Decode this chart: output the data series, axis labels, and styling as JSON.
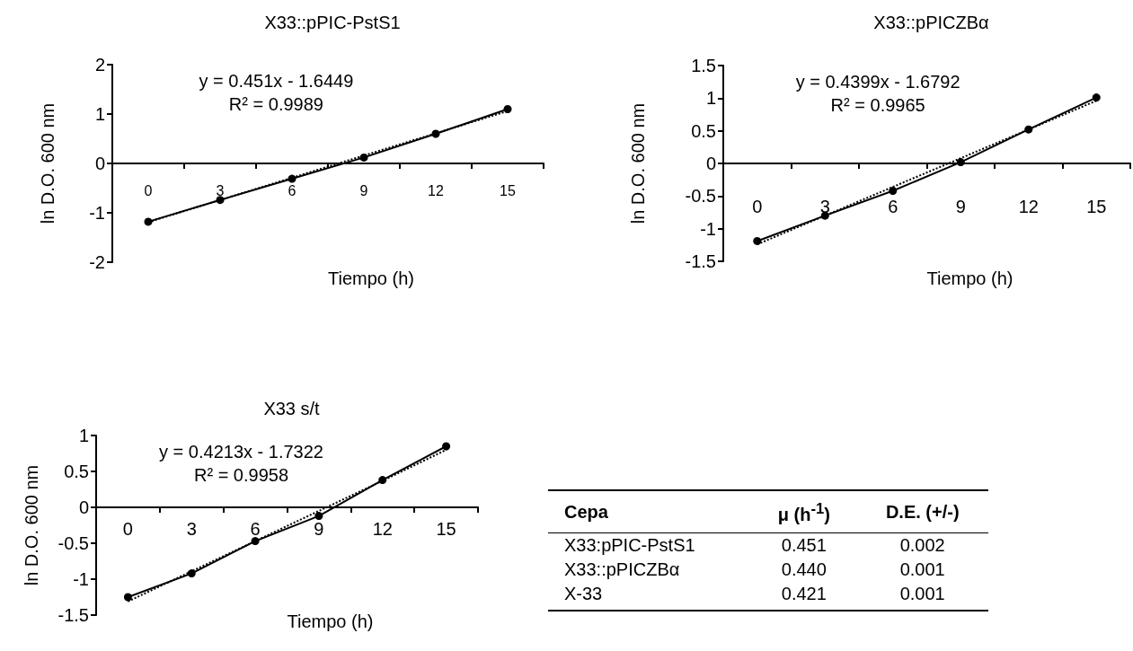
{
  "chart_data": [
    {
      "type": "line",
      "title": "X33::pPIC-PstS1",
      "xlabel": "Tiempo (h)",
      "ylabel": "ln D.O. 600 nm",
      "categories": [
        "0",
        "3",
        "6",
        "9",
        "12",
        "15"
      ],
      "ylim": [
        -2,
        2
      ],
      "yticks": [
        -2,
        -1,
        0,
        1,
        2
      ],
      "annotations": [
        "y = 0.451x - 1.6449",
        "R² = 0.9989"
      ],
      "series": [
        {
          "color": "#000000",
          "marker": "circle",
          "line_style": "solid",
          "values": [
            -1.18,
            -0.74,
            -0.31,
            0.12,
            0.6,
            1.1
          ]
        },
        {
          "color": "#000000",
          "marker": "none",
          "line_style": "dotted",
          "values": [
            -1.19,
            -0.74,
            -0.29,
            0.16,
            0.61,
            1.06
          ]
        }
      ]
    },
    {
      "type": "line",
      "title": "X33::pPICZBα",
      "xlabel": "Tiempo (h)",
      "ylabel": "ln D.O. 600 nm",
      "categories": [
        "0",
        "3",
        "6",
        "9",
        "12",
        "15"
      ],
      "ylim": [
        -1.5,
        1.5
      ],
      "yticks": [
        -1.5,
        -1,
        -0.5,
        0,
        0.5,
        1,
        1.5
      ],
      "annotations": [
        "y = 0.4399x - 1.6792",
        "R² = 0.9965"
      ],
      "series": [
        {
          "color": "#000000",
          "marker": "circle",
          "line_style": "solid",
          "values": [
            -1.19,
            -0.8,
            -0.42,
            0.02,
            0.52,
            1.01
          ]
        },
        {
          "color": "#000000",
          "marker": "none",
          "line_style": "dotted",
          "values": [
            -1.24,
            -0.8,
            -0.36,
            0.08,
            0.52,
            0.96
          ]
        }
      ]
    },
    {
      "type": "line",
      "title": "X33 s/t",
      "xlabel": "Tiempo (h)",
      "ylabel": "ln D.O. 600 nm",
      "categories": [
        "0",
        "3",
        "6",
        "9",
        "12",
        "15"
      ],
      "ylim": [
        -1.5,
        1
      ],
      "yticks": [
        -1.5,
        -1,
        -0.5,
        0,
        0.5,
        1
      ],
      "annotations": [
        "y = 0.4213x - 1.7322",
        "R² = 0.9958"
      ],
      "series": [
        {
          "color": "#000000",
          "marker": "circle",
          "line_style": "solid",
          "values": [
            -1.25,
            -0.92,
            -0.47,
            -0.12,
            0.38,
            0.85
          ]
        },
        {
          "color": "#000000",
          "marker": "none",
          "line_style": "dotted",
          "values": [
            -1.31,
            -0.89,
            -0.47,
            -0.05,
            0.37,
            0.8
          ]
        }
      ]
    },
    {
      "type": "other",
      "annotations": [
        "Cepa",
        "μ (h$^{-1}$)",
        "D.E. (+/-)",
        "X33:pPIC-PstS1",
        "0.451",
        "0.002",
        "X33::pPICZBα",
        "0.440",
        "0.001",
        "X-33",
        "0.421",
        "0.001"
      ]
    }
  ]
}
